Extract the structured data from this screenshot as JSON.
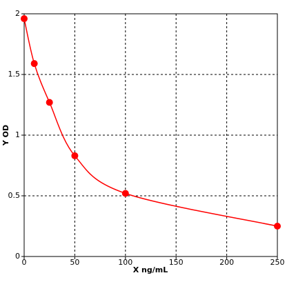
{
  "chart_data": {
    "type": "scatter",
    "x_label": "X ng/mL",
    "y_label": "Y OD",
    "x": [
      0,
      10,
      25,
      50,
      100,
      250
    ],
    "series": [
      {
        "color": "#ff0000",
        "values": [
          1.96,
          1.59,
          1.27,
          0.83,
          0.52,
          0.25
        ]
      }
    ],
    "xlim": [
      0,
      250
    ],
    "xticks": [
      0,
      50,
      100,
      150,
      200,
      250
    ],
    "ylim": [
      0,
      2
    ],
    "yticks": [
      0,
      0.5,
      1,
      1.5,
      2
    ],
    "grid": true
  }
}
